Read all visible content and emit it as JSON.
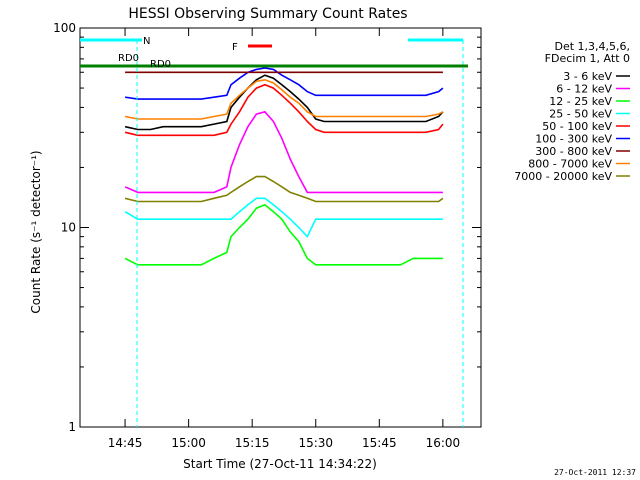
{
  "chart_data": {
    "type": "line",
    "title": "HESSI Observing Summary Count Rates",
    "xlabel": "Start Time (27-Oct-11 14:34:22)",
    "ylabel": "Count Rate (s⁻¹ detector⁻¹)",
    "yscale": "log",
    "ylim": [
      1,
      100
    ],
    "xlim": [
      "14:34:22",
      "16:09:00"
    ],
    "x_ticks": [
      "14:45",
      "15:00",
      "15:15",
      "15:30",
      "15:45",
      "16:00"
    ],
    "y_ticks": [
      "1",
      "10",
      "100"
    ],
    "grid": false,
    "legend_position": "right",
    "legend_header": [
      "Det 1,3,4,5,6,",
      "FDecim 1, Att 0"
    ],
    "x": [
      "14:45",
      "14:48",
      "14:51",
      "14:54",
      "14:57",
      "15:00",
      "15:03",
      "15:06",
      "15:09",
      "15:10",
      "15:12",
      "15:14",
      "15:16",
      "15:18",
      "15:20",
      "15:22",
      "15:24",
      "15:26",
      "15:28",
      "15:30",
      "15:32",
      "15:35",
      "15:38",
      "15:41",
      "15:44",
      "15:47",
      "15:50",
      "15:53",
      "15:56",
      "15:59",
      "16:00"
    ],
    "series": [
      {
        "name": "3 - 6 keV",
        "color": "#000000",
        "values": [
          32,
          31,
          31,
          32,
          32,
          32,
          32,
          33,
          34,
          40,
          45,
          50,
          55,
          58,
          56,
          52,
          48,
          44,
          40,
          35,
          34,
          34,
          34,
          34,
          34,
          34,
          34,
          34,
          34,
          36,
          38
        ]
      },
      {
        "name": "6 - 12 keV",
        "color": "#ff00ff",
        "values": [
          16,
          15,
          15,
          15,
          15,
          15,
          15,
          15,
          16,
          20,
          26,
          32,
          37,
          38,
          34,
          28,
          22,
          18,
          15,
          15,
          15,
          15,
          15,
          15,
          15,
          15,
          15,
          15,
          15,
          15,
          15
        ]
      },
      {
        "name": "12 - 25 keV",
        "color": "#00ff00",
        "values": [
          7,
          6.5,
          6.5,
          6.5,
          6.5,
          6.5,
          6.5,
          7,
          7.5,
          9,
          10,
          11,
          12.5,
          13,
          12,
          11,
          9.5,
          8.5,
          7,
          6.5,
          6.5,
          6.5,
          6.5,
          6.5,
          6.5,
          6.5,
          6.5,
          7,
          7,
          7,
          7
        ]
      },
      {
        "name": "25 - 50 keV",
        "color": "#00ffff",
        "values": [
          12,
          11,
          11,
          11,
          11,
          11,
          11,
          11,
          11,
          11,
          12,
          13,
          14,
          14,
          13,
          12,
          11,
          10,
          9,
          11,
          11,
          11,
          11,
          11,
          11,
          11,
          11,
          11,
          11,
          11,
          11
        ]
      },
      {
        "name": "50 - 100 keV",
        "color": "#ff0000",
        "values": [
          30,
          29,
          29,
          29,
          29,
          29,
          29,
          29,
          30,
          33,
          38,
          45,
          50,
          52,
          50,
          46,
          42,
          38,
          34,
          31,
          30,
          30,
          30,
          30,
          30,
          30,
          30,
          30,
          30,
          31,
          33
        ]
      },
      {
        "name": "100 - 300 keV",
        "color": "#0000ff",
        "values": [
          45,
          44,
          44,
          44,
          44,
          44,
          44,
          45,
          46,
          52,
          56,
          60,
          62,
          63,
          62,
          58,
          55,
          52,
          48,
          46,
          46,
          46,
          46,
          46,
          46,
          46,
          46,
          46,
          46,
          48,
          50
        ]
      },
      {
        "name": "300 - 800 keV",
        "color": "#7f0000",
        "values": [
          60,
          60,
          60,
          60,
          60,
          60,
          60,
          60,
          60,
          60,
          60,
          60,
          60,
          60,
          60,
          60,
          60,
          60,
          60,
          60,
          60,
          60,
          60,
          60,
          60,
          60,
          60,
          60,
          60,
          60,
          60
        ]
      },
      {
        "name": "800 - 7000 keV",
        "color": "#ff8000",
        "values": [
          36,
          35,
          35,
          35,
          35,
          35,
          35,
          36,
          37,
          42,
          46,
          50,
          54,
          55,
          53,
          49,
          45,
          42,
          38,
          36,
          36,
          36,
          36,
          36,
          36,
          36,
          36,
          36,
          36,
          37,
          38
        ]
      },
      {
        "name": "7000 - 20000 keV",
        "color": "#808000",
        "values": [
          14,
          13.5,
          13.5,
          13.5,
          13.5,
          13.5,
          13.5,
          14,
          14.5,
          15,
          16,
          17,
          18,
          18,
          17,
          16,
          15,
          14.5,
          14,
          13.5,
          13.5,
          13.5,
          13.5,
          13.5,
          13.5,
          13.5,
          13.5,
          13.5,
          13.5,
          13.5,
          14
        ]
      }
    ],
    "annotations": [
      "N",
      "RD0",
      "RD0",
      "F"
    ]
  },
  "footer": {
    "timestamp": "27-Oct-2011 12:37"
  }
}
